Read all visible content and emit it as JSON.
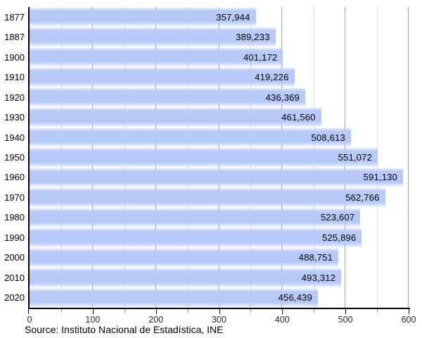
{
  "chart_data": {
    "type": "bar",
    "orientation": "horizontal",
    "title": "",
    "categories": [
      "1877",
      "1887",
      "1900",
      "1910",
      "1920",
      "1930",
      "1940",
      "1950",
      "1960",
      "1970",
      "1980",
      "1990",
      "2000",
      "2010",
      "2020"
    ],
    "values": [
      357944,
      389233,
      401172,
      419226,
      436369,
      461560,
      508613,
      551072,
      591130,
      562766,
      523607,
      525896,
      488751,
      493312,
      456439
    ],
    "value_labels": [
      "357,944",
      "389,233",
      "401,172",
      "419,226",
      "436,369",
      "461,560",
      "508,613",
      "551,072",
      "591,130",
      "562,766",
      "523,607",
      "525,896",
      "488,751",
      "493,312",
      "456,439"
    ],
    "xlabel": "",
    "ylabel": "",
    "xlim": [
      0,
      600
    ],
    "x_major_ticks": [
      0,
      100,
      200,
      300,
      400,
      500,
      600
    ],
    "x_major_tick_labels": [
      "0",
      "100",
      "200",
      "300",
      "400",
      "500",
      "600"
    ],
    "x_minor_ticks": [
      50,
      150,
      250,
      350,
      450,
      550
    ],
    "axis_value_scale": "thousands",
    "grid": "vertical, minor every 50, major every 100",
    "legend": "none",
    "source": "Source: Instituto Nacional de Estadística, INE",
    "colors": {
      "bar": "#b5c8f7",
      "bar_highlight": "#ffffff",
      "grid_minor": "#dadada",
      "grid_major": "#a3a3a3",
      "axis": "#000000",
      "label_text": "#000000",
      "background": "#ffffff"
    }
  }
}
